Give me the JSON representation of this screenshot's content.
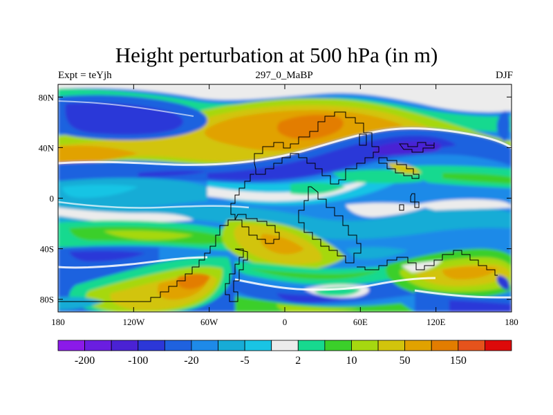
{
  "title": "Height perturbation at 500 hPa (in m)",
  "subtitle_left": "Expt = teYjh",
  "subtitle_center": "297_0_MaBP",
  "subtitle_right": "DJF",
  "map": {
    "field": "geopotential height perturbation",
    "level": "500 hPa",
    "units": "m",
    "lon_range": [
      -180,
      180
    ],
    "lat_range": [
      -90,
      90
    ]
  },
  "axes": {
    "x_ticks": [
      {
        "value": -180,
        "label": "180"
      },
      {
        "value": -120,
        "label": "120W"
      },
      {
        "value": -60,
        "label": "60W"
      },
      {
        "value": 0,
        "label": "0"
      },
      {
        "value": 60,
        "label": "60E"
      },
      {
        "value": 120,
        "label": "120E"
      },
      {
        "value": 180,
        "label": "180"
      }
    ],
    "y_ticks": [
      {
        "value": 80,
        "label": "80N"
      },
      {
        "value": 40,
        "label": "40N"
      },
      {
        "value": 0,
        "label": "0"
      },
      {
        "value": -40,
        "label": "40S"
      },
      {
        "value": -80,
        "label": "80S"
      }
    ]
  },
  "colorbar": {
    "colors": [
      "#8b1ae8",
      "#6a1ee0",
      "#4a22d4",
      "#2c37d8",
      "#1f62df",
      "#1e8ae8",
      "#17acd6",
      "#19c4e4",
      "#ececec",
      "#17d98f",
      "#3bcf2a",
      "#a6d810",
      "#d2c40c",
      "#e1a200",
      "#e37d00",
      "#e5531c",
      "#dd0a0a"
    ],
    "labels": [
      {
        "text": "-200",
        "index": 1
      },
      {
        "text": "-100",
        "index": 3
      },
      {
        "text": "-20",
        "index": 5
      },
      {
        "text": "-5",
        "index": 7
      },
      {
        "text": "2",
        "index": 9
      },
      {
        "text": "10",
        "index": 11
      },
      {
        "text": "50",
        "index": 13
      },
      {
        "text": "150",
        "index": 15
      }
    ]
  }
}
